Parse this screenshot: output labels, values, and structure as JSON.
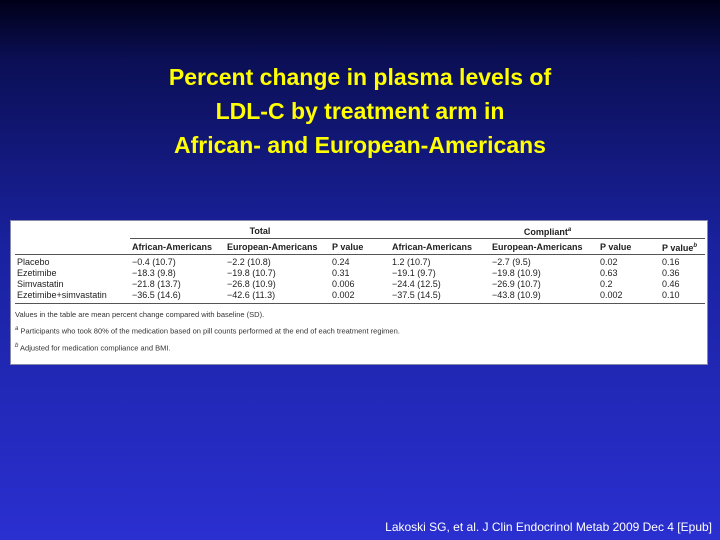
{
  "title": {
    "lines": [
      "Percent change in plasma levels of",
      "LDL-C by treatment arm in",
      "African- and European-Americans"
    ]
  },
  "table": {
    "groups": [
      {
        "text": "Total"
      },
      {
        "text": "Compliant",
        "sup": "a"
      }
    ],
    "columns": [
      {
        "text": "African-Americans"
      },
      {
        "text": "European-Americans"
      },
      {
        "text": "P value"
      },
      {
        "text": "African-Americans"
      },
      {
        "text": "European-Americans"
      },
      {
        "text": "P value"
      },
      {
        "text": "P value",
        "sup": "b"
      }
    ],
    "rows": [
      [
        "Placebo",
        "−0.4 (10.7)",
        "−2.2 (10.8)",
        "0.24",
        "1.2 (10.7)",
        "−2.7 (9.5)",
        "0.02",
        "0.16"
      ],
      [
        "Ezetimibe",
        "−18.3 (9.8)",
        "−19.8 (10.7)",
        "0.31",
        "−19.1 (9.7)",
        "−19.8 (10.9)",
        "0.63",
        "0.36"
      ],
      [
        "Simvastatin",
        "−21.8 (13.7)",
        "−26.8 (10.9)",
        "0.006",
        "−24.4 (12.5)",
        "−26.9 (10.7)",
        "0.2",
        "0.46"
      ],
      [
        "Ezetimibe+simvastatin",
        "−36.5 (14.6)",
        "−42.6 (11.3)",
        "0.002",
        "−37.5 (14.5)",
        "−43.8 (10.9)",
        "0.002",
        "0.10"
      ]
    ],
    "footnotes": [
      {
        "text": "Values in the table are mean percent change compared with baseline (SD)."
      },
      {
        "sup": "a",
        "text": "Participants who took 80% of the medication based on pill counts performed at the end of each treatment regimen."
      },
      {
        "sup": "b",
        "text": "Adjusted for medication compliance and BMI."
      }
    ]
  },
  "citation": "Lakoski SG, et al. J Clin Endocrinol Metab 2009 Dec 4 [Epub]"
}
